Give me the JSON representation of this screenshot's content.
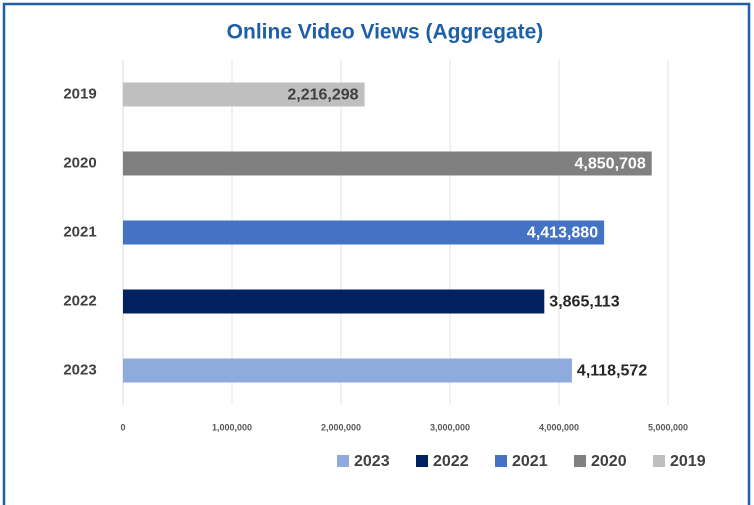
{
  "chart_data": {
    "type": "bar",
    "orientation": "horizontal",
    "title": "Online Video Views (Aggregate)",
    "categories": [
      "2019",
      "2020",
      "2021",
      "2022",
      "2023"
    ],
    "values": [
      2216298,
      4850708,
      4413880,
      3865113,
      4118572
    ],
    "value_labels": [
      "2,216,298",
      "4,850,708",
      "4,413,880",
      "3,865,113",
      "4,118,572"
    ],
    "colors": [
      "#bfbfbf",
      "#808080",
      "#4472c4",
      "#002060",
      "#8faadc"
    ],
    "label_position": [
      "inside",
      "inside",
      "inside",
      "outside",
      "outside"
    ],
    "label_colors": [
      "#404040",
      "#ffffff",
      "#ffffff",
      "#262626",
      "#262626"
    ],
    "xlim": [
      0,
      5000000
    ],
    "xticks": [
      0,
      {
        "value": 1000000,
        "label": "1,000,000"
      },
      {
        "value": 2000000,
        "label": "2,000,000"
      },
      {
        "value": 3000000,
        "label": "3,000,000"
      },
      {
        "value": 4000000,
        "label": "4,000,000"
      },
      {
        "value": 5000000,
        "label": "5,000,000"
      }
    ],
    "grid": true,
    "legend": "bottom",
    "legend_order": "reversed"
  }
}
